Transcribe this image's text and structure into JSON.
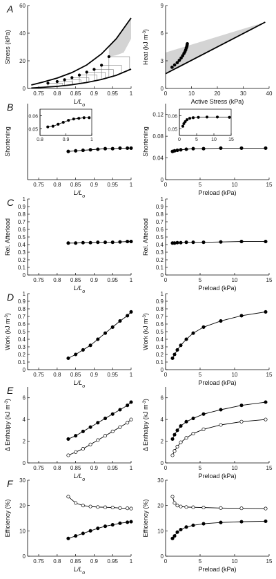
{
  "colors": {
    "filled": "#000000",
    "open": "#ffffff",
    "shade": "#d4d4d4",
    "line": "#000000",
    "thin": "#666666"
  },
  "panel_letters": [
    "A",
    "B",
    "C",
    "D",
    "E",
    "F"
  ],
  "chart_data": [
    {
      "id": "A-left",
      "type": "line",
      "letter": "A",
      "xlabel": "L/L",
      "xlabel_sub": "o",
      "ylabel": "Stress (kPa)",
      "xlim": [
        0.72,
        1.0
      ],
      "ylim": [
        0,
        60
      ],
      "xticks": [
        "0.75",
        "0.8",
        "0.85",
        "0.9",
        "0.95",
        "1"
      ],
      "xtick_values": [
        0.75,
        0.8,
        0.85,
        0.9,
        0.95,
        1.0
      ],
      "yticks": [
        "0",
        "20",
        "40",
        "60"
      ],
      "ytick_values": [
        0,
        20,
        40,
        60
      ],
      "upper_curve": {
        "x": [
          0.73,
          0.76,
          0.8,
          0.84,
          0.88,
          0.92,
          0.96,
          1.0
        ],
        "y": [
          2.5,
          4.5,
          7.5,
          11.5,
          17,
          25,
          36,
          51
        ]
      },
      "lower_curve": {
        "x": [
          0.73,
          0.76,
          0.8,
          0.84,
          0.88,
          0.92,
          0.96,
          1.0
        ],
        "y": [
          0.3,
          0.8,
          1.5,
          2.7,
          4.3,
          6.5,
          9.5,
          14
        ]
      },
      "points": {
        "x": [
          0.775,
          0.8,
          0.82,
          0.84,
          0.86,
          0.88,
          0.9,
          0.92,
          0.94
        ],
        "y": [
          3.8,
          5,
          6.3,
          7.8,
          9.7,
          11.8,
          13.8,
          16.8,
          23
        ]
      },
      "shade_between": {
        "x": [
          0.94,
          0.96,
          0.98,
          1.0
        ],
        "y_low": [
          23,
          24,
          26,
          36
        ],
        "y_high": [
          31,
          36,
          43,
          51
        ]
      }
    },
    {
      "id": "A-right",
      "type": "line",
      "xlabel": "Active Stress (kPa)",
      "ylabel": "Heat (kJ m",
      "ylabel_sup": "-3",
      "ylabel_end": ")",
      "xlim": [
        0,
        40
      ],
      "ylim": [
        0,
        9
      ],
      "xticks": [
        "0",
        "10",
        "20",
        "30",
        "40"
      ],
      "xtick_values": [
        0,
        10,
        20,
        30,
        40
      ],
      "yticks": [
        "0",
        "3",
        "6",
        "9"
      ],
      "ytick_values": [
        0,
        3,
        6,
        9
      ],
      "line": {
        "x": [
          0,
          38.5
        ],
        "y": [
          1.6,
          7.2
        ]
      },
      "shade_upper": {
        "x": [
          0,
          38.5
        ],
        "y": [
          3.9,
          7.2
        ]
      },
      "points": {
        "x": [
          2.5,
          3.5,
          4.5,
          5.3,
          6,
          6.6,
          7.1,
          7.5,
          7.8,
          8.0,
          8.2,
          8.3,
          8.4
        ],
        "y": [
          2.3,
          2.55,
          2.8,
          3.05,
          3.3,
          3.55,
          3.8,
          4.0,
          4.2,
          4.4,
          4.55,
          4.7,
          4.85
        ]
      }
    },
    {
      "id": "B-left",
      "type": "line",
      "letter": "B",
      "xlabel": "L/L",
      "xlabel_sub": "o",
      "ylabel": "Shortening",
      "xlim": [
        0.72,
        1.0
      ],
      "ylim": [
        0,
        0.14
      ],
      "xticks": [
        "0.75",
        "0.8",
        "0.85",
        "0.9",
        "0.95",
        "1"
      ],
      "xtick_values": [
        0.75,
        0.8,
        0.85,
        0.9,
        0.95,
        1.0
      ],
      "yticks": [],
      "ytick_values": [],
      "series": [
        {
          "name": "",
          "filled": true,
          "x": [
            0.83,
            0.85,
            0.87,
            0.89,
            0.91,
            0.93,
            0.95,
            0.97,
            0.99,
            1.0
          ],
          "y": [
            0.052,
            0.053,
            0.054,
            0.055,
            0.056,
            0.057,
            0.057,
            0.058,
            0.058,
            0.058
          ]
        }
      ],
      "inset": {
        "xlim": [
          0.8,
          1.0
        ],
        "ylim": [
          0.045,
          0.065
        ],
        "xticks": [
          "0.8",
          "0.9",
          "1"
        ],
        "xtick_values": [
          0.8,
          0.9,
          1.0
        ],
        "yticks": [
          "0.05",
          "0.06"
        ],
        "ytick_values": [
          0.05,
          0.06
        ],
        "x": [
          0.83,
          0.85,
          0.87,
          0.89,
          0.91,
          0.93,
          0.95,
          0.97,
          0.99
        ],
        "y": [
          0.0515,
          0.052,
          0.0535,
          0.055,
          0.0565,
          0.0575,
          0.058,
          0.0585,
          0.0585
        ]
      }
    },
    {
      "id": "B-right",
      "type": "line",
      "xlabel": "Preload (kPa)",
      "ylabel": "Shortening",
      "xlim": [
        0,
        15
      ],
      "ylim": [
        0,
        0.14
      ],
      "xticks": [
        "0",
        "5",
        "10",
        "15"
      ],
      "xtick_values": [
        0,
        5,
        10,
        15
      ],
      "yticks": [
        "0",
        "0.04",
        "0.08",
        "0.12"
      ],
      "ytick_values": [
        0,
        0.04,
        0.08,
        0.12
      ],
      "series": [
        {
          "name": "",
          "filled": true,
          "x": [
            1.0,
            1.3,
            1.7,
            2.2,
            3.0,
            4.0,
            5.5,
            8.0,
            11.0,
            14.5
          ],
          "y": [
            0.052,
            0.053,
            0.054,
            0.055,
            0.056,
            0.057,
            0.057,
            0.058,
            0.058,
            0.058
          ]
        }
      ],
      "inset": {
        "xlim": [
          0,
          15
        ],
        "ylim": [
          0.045,
          0.065
        ],
        "xticks": [
          "0",
          "5",
          "10",
          "15"
        ],
        "xtick_values": [
          0,
          5,
          10,
          15
        ],
        "yticks": [
          "0.05",
          "0.06"
        ],
        "ytick_values": [
          0.05,
          0.06
        ],
        "x": [
          1.0,
          1.3,
          1.7,
          2.2,
          3.0,
          4.0,
          5.5,
          8.0,
          11.0,
          14.5
        ],
        "y": [
          0.052,
          0.054,
          0.0555,
          0.057,
          0.058,
          0.0585,
          0.0588,
          0.059,
          0.059,
          0.0588
        ]
      }
    },
    {
      "id": "C-left",
      "type": "line",
      "letter": "C",
      "xlabel": "L/L",
      "xlabel_sub": "o",
      "ylabel": "Rel. Afterload",
      "xlim": [
        0.72,
        1.0
      ],
      "ylim": [
        0,
        1
      ],
      "xticks": [
        "0.75",
        "0.8",
        "0.85",
        "0.9",
        "0.95",
        "1"
      ],
      "xtick_values": [
        0.75,
        0.8,
        0.85,
        0.9,
        0.95,
        1.0
      ],
      "yticks": [
        "0",
        "0.1",
        "0.2",
        "0.3",
        "0.4",
        "0.5",
        "0.6",
        "0.7",
        "0.8",
        "0.9",
        "1"
      ],
      "ytick_values": [
        0,
        0.1,
        0.2,
        0.3,
        0.4,
        0.5,
        0.6,
        0.7,
        0.8,
        0.9,
        1
      ],
      "series": [
        {
          "name": "",
          "filled": true,
          "x": [
            0.83,
            0.85,
            0.87,
            0.89,
            0.91,
            0.93,
            0.95,
            0.97,
            0.99,
            1.0
          ],
          "y": [
            0.42,
            0.42,
            0.425,
            0.425,
            0.43,
            0.43,
            0.43,
            0.435,
            0.44,
            0.44
          ]
        }
      ]
    },
    {
      "id": "C-right",
      "type": "line",
      "xlabel": "Preload (kPa)",
      "ylabel": "Rel. Afterload",
      "xlim": [
        0,
        15
      ],
      "ylim": [
        0,
        1
      ],
      "xticks": [
        "0",
        "5",
        "10",
        "15"
      ],
      "xtick_values": [
        0,
        5,
        10,
        15
      ],
      "yticks": [
        "0",
        "0.1",
        "0.2",
        "0.3",
        "0.4",
        "0.5",
        "0.6",
        "0.7",
        "0.8",
        "0.9",
        "1"
      ],
      "ytick_values": [
        0,
        0.1,
        0.2,
        0.3,
        0.4,
        0.5,
        0.6,
        0.7,
        0.8,
        0.9,
        1
      ],
      "series": [
        {
          "name": "",
          "filled": true,
          "x": [
            1.0,
            1.3,
            1.7,
            2.2,
            3.0,
            4.0,
            5.5,
            8.0,
            11.0,
            14.5
          ],
          "y": [
            0.42,
            0.42,
            0.425,
            0.425,
            0.43,
            0.43,
            0.43,
            0.435,
            0.44,
            0.44
          ]
        }
      ]
    },
    {
      "id": "D-left",
      "type": "line",
      "letter": "D",
      "xlabel": "L/L",
      "xlabel_sub": "o",
      "ylabel": "Work (kJ m",
      "ylabel_sup": "-3",
      "ylabel_end": ")",
      "xlim": [
        0.72,
        1.0
      ],
      "ylim": [
        0,
        1
      ],
      "xticks": [
        "0.75",
        "0.8",
        "0.85",
        "0.9",
        "0.95",
        "1"
      ],
      "xtick_values": [
        0.75,
        0.8,
        0.85,
        0.9,
        0.95,
        1.0
      ],
      "yticks": [
        "0",
        "0.1",
        "0.2",
        "0.3",
        "0.4",
        "0.5",
        "0.6",
        "0.7",
        "0.8",
        "0.9",
        "1"
      ],
      "ytick_values": [
        0,
        0.1,
        0.2,
        0.3,
        0.4,
        0.5,
        0.6,
        0.7,
        0.8,
        0.9,
        1
      ],
      "series": [
        {
          "name": "",
          "filled": true,
          "x": [
            0.83,
            0.85,
            0.87,
            0.89,
            0.91,
            0.93,
            0.95,
            0.97,
            0.99,
            1.0
          ],
          "y": [
            0.15,
            0.2,
            0.26,
            0.32,
            0.4,
            0.48,
            0.56,
            0.64,
            0.71,
            0.76
          ]
        }
      ]
    },
    {
      "id": "D-right",
      "type": "line",
      "xlabel": "Preload (kPa)",
      "ylabel": "Work (kJ m",
      "ylabel_sup": "-3",
      "ylabel_end": ")",
      "xlim": [
        0,
        15
      ],
      "ylim": [
        0,
        1
      ],
      "xticks": [
        "0",
        "5",
        "10",
        "15"
      ],
      "xtick_values": [
        0,
        5,
        10,
        15
      ],
      "yticks": [
        "0",
        "0.1",
        "0.2",
        "0.3",
        "0.4",
        "0.5",
        "0.6",
        "0.7",
        "0.8",
        "0.9",
        "1"
      ],
      "ytick_values": [
        0,
        0.1,
        0.2,
        0.3,
        0.4,
        0.5,
        0.6,
        0.7,
        0.8,
        0.9,
        1
      ],
      "series": [
        {
          "name": "",
          "filled": true,
          "x": [
            1.0,
            1.3,
            1.7,
            2.2,
            3.0,
            4.0,
            5.5,
            8.0,
            11.0,
            14.5
          ],
          "y": [
            0.15,
            0.2,
            0.26,
            0.32,
            0.4,
            0.48,
            0.56,
            0.64,
            0.71,
            0.76
          ]
        }
      ]
    },
    {
      "id": "E-left",
      "type": "line",
      "letter": "E",
      "xlabel": "L/L",
      "xlabel_sub": "o",
      "ylabel": "Δ Enthalpy (kJ m",
      "ylabel_sup": "-3",
      "ylabel_end": ")",
      "xlim": [
        0.72,
        1.0
      ],
      "ylim": [
        0,
        7
      ],
      "xticks": [
        "0.75",
        "0.8",
        "0.85",
        "0.9",
        "0.95",
        "1"
      ],
      "xtick_values": [
        0.75,
        0.8,
        0.85,
        0.9,
        0.95,
        1.0
      ],
      "yticks": [
        "0",
        "2",
        "4",
        "6"
      ],
      "ytick_values": [
        0,
        2,
        4,
        6
      ],
      "series": [
        {
          "name": "",
          "filled": true,
          "x": [
            0.83,
            0.85,
            0.87,
            0.89,
            0.91,
            0.93,
            0.95,
            0.97,
            0.99,
            1.0
          ],
          "y": [
            2.2,
            2.5,
            2.9,
            3.3,
            3.7,
            4.1,
            4.5,
            4.9,
            5.3,
            5.6
          ]
        },
        {
          "name": "",
          "filled": false,
          "x": [
            0.83,
            0.85,
            0.87,
            0.89,
            0.91,
            0.93,
            0.95,
            0.97,
            0.99,
            1.0
          ],
          "y": [
            0.7,
            1.0,
            1.3,
            1.7,
            2.1,
            2.5,
            2.9,
            3.3,
            3.7,
            4.0
          ]
        }
      ]
    },
    {
      "id": "E-right",
      "type": "line",
      "xlabel": "Preload (kPa)",
      "ylabel": "Δ Enthalpy (kJ m",
      "ylabel_sup": "-3",
      "ylabel_end": ")",
      "xlim": [
        0,
        15
      ],
      "ylim": [
        0,
        7
      ],
      "xticks": [
        "0",
        "5",
        "10",
        "15"
      ],
      "xtick_values": [
        0,
        5,
        10,
        15
      ],
      "yticks": [
        "0",
        "2",
        "4",
        "6"
      ],
      "ytick_values": [
        0,
        2,
        4,
        6
      ],
      "series": [
        {
          "name": "",
          "filled": true,
          "x": [
            1.0,
            1.3,
            1.7,
            2.2,
            3.0,
            4.0,
            5.5,
            8.0,
            11.0,
            14.5
          ],
          "y": [
            2.2,
            2.6,
            3.0,
            3.4,
            3.8,
            4.1,
            4.5,
            4.9,
            5.3,
            5.6
          ]
        },
        {
          "name": "",
          "filled": false,
          "x": [
            1.0,
            1.3,
            1.7,
            2.2,
            3.0,
            4.0,
            5.5,
            8.0,
            11.0,
            14.5
          ],
          "y": [
            0.7,
            1.1,
            1.5,
            1.9,
            2.3,
            2.7,
            3.1,
            3.5,
            3.8,
            4.0
          ]
        }
      ]
    },
    {
      "id": "F-left",
      "type": "line",
      "letter": "F",
      "xlabel": "L/L",
      "xlabel_sub": "o",
      "ylabel": "Efficiency (%)",
      "xlim": [
        0.72,
        1.0
      ],
      "ylim": [
        0,
        30
      ],
      "xticks": [
        "0.75",
        "0.8",
        "0.85",
        "0.9",
        "0.95",
        "1"
      ],
      "xtick_values": [
        0.75,
        0.8,
        0.85,
        0.9,
        0.95,
        1.0
      ],
      "yticks": [
        "0",
        "10",
        "20",
        "30"
      ],
      "ytick_values": [
        0,
        10,
        20,
        30
      ],
      "series": [
        {
          "name": "",
          "filled": false,
          "x": [
            0.83,
            0.85,
            0.87,
            0.89,
            0.91,
            0.93,
            0.95,
            0.97,
            0.99,
            1.0
          ],
          "y": [
            23.5,
            21,
            20,
            19.6,
            19.4,
            19.3,
            19.2,
            19.0,
            18.9,
            18.8
          ]
        },
        {
          "name": "",
          "filled": true,
          "x": [
            0.83,
            0.85,
            0.87,
            0.89,
            0.91,
            0.93,
            0.95,
            0.97,
            0.99,
            1.0
          ],
          "y": [
            7,
            8,
            9,
            10,
            11,
            11.8,
            12.4,
            13,
            13.4,
            13.6
          ]
        }
      ]
    },
    {
      "id": "F-right",
      "type": "line",
      "xlabel": "Preload (kPa)",
      "ylabel": "Efficiency (%)",
      "xlim": [
        0,
        15
      ],
      "ylim": [
        0,
        30
      ],
      "xticks": [
        "0",
        "5",
        "10",
        "15"
      ],
      "xtick_values": [
        0,
        5,
        10,
        15
      ],
      "yticks": [
        "0",
        "10",
        "20",
        "30"
      ],
      "ytick_values": [
        0,
        10,
        20,
        30
      ],
      "series": [
        {
          "name": "",
          "filled": false,
          "x": [
            1.0,
            1.3,
            1.7,
            2.2,
            3.0,
            4.0,
            5.5,
            8.0,
            11.0,
            14.5
          ],
          "y": [
            23.5,
            21,
            20,
            19.6,
            19.4,
            19.3,
            19.2,
            19.0,
            18.9,
            18.8
          ]
        },
        {
          "name": "",
          "filled": true,
          "x": [
            1.0,
            1.3,
            1.7,
            2.2,
            3.0,
            4.0,
            5.5,
            8.0,
            11.0,
            14.5
          ],
          "y": [
            7,
            8,
            9.5,
            10.5,
            11.5,
            12.2,
            12.8,
            13.3,
            13.6,
            13.8
          ]
        }
      ]
    }
  ]
}
